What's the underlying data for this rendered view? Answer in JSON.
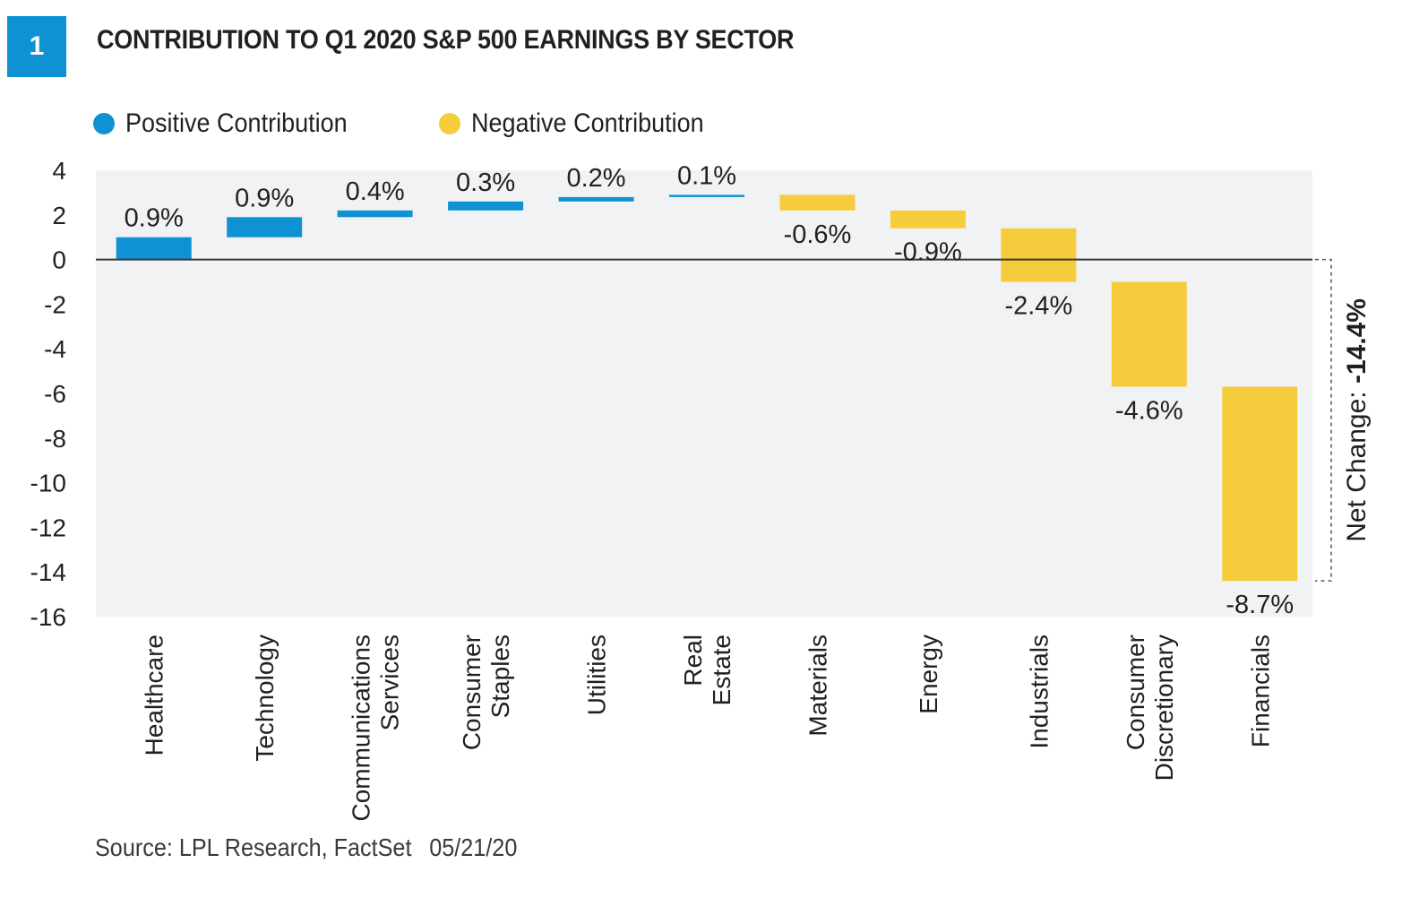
{
  "figure": {
    "number": "1",
    "title": "CONTRIBUTION TO Q1 2020 S&P 500 EARNINGS BY SECTOR",
    "source": "Source: LPL Research, FactSet",
    "date": "05/21/20"
  },
  "colors": {
    "positive": "#0f92d4",
    "negative": "#f5cd3c",
    "plot_background": "#f1f2f4",
    "badge": "#0f92d4"
  },
  "chart_data": {
    "type": "bar",
    "subtype": "waterfall",
    "title": "CONTRIBUTION TO Q1 2020 S&P 500 EARNINGS BY SECTOR",
    "legend": [
      {
        "name": "Positive Contribution",
        "color": "#0f92d4"
      },
      {
        "name": "Negative Contribution",
        "color": "#f5cd3c"
      }
    ],
    "legend_position": "top-left",
    "categories": [
      [
        "Healthcare"
      ],
      [
        "Technology"
      ],
      [
        "Communications",
        "Services"
      ],
      [
        "Consumer",
        "Staples"
      ],
      [
        "Utilities"
      ],
      [
        "Real",
        "Estate"
      ],
      [
        "Materials"
      ],
      [
        "Energy"
      ],
      [
        "Industrials"
      ],
      [
        "Consumer",
        "Discretionary"
      ],
      [
        "Financials"
      ]
    ],
    "values": [
      0.9,
      0.9,
      0.4,
      0.3,
      0.2,
      0.1,
      -0.6,
      -0.9,
      -2.4,
      -4.6,
      -8.7
    ],
    "bar_ranges": [
      [
        0,
        1.0
      ],
      [
        1.0,
        1.9
      ],
      [
        1.9,
        2.2
      ],
      [
        2.2,
        2.6
      ],
      [
        2.6,
        2.8
      ],
      [
        2.8,
        2.9
      ],
      [
        2.9,
        2.2
      ],
      [
        2.2,
        1.4
      ],
      [
        1.4,
        -1.0
      ],
      [
        -1.0,
        -5.7
      ],
      [
        -5.7,
        -14.4
      ]
    ],
    "data_labels": [
      "0.9%",
      "0.9%",
      "0.4%",
      "0.3%",
      "0.2%",
      "0.1%",
      "-0.6%",
      "-0.9%",
      "-2.4%",
      "-4.6%",
      "-8.7%"
    ],
    "yticks": [
      4,
      2,
      0,
      -2,
      -4,
      -6,
      -8,
      -10,
      -12,
      -14,
      -16
    ],
    "ylim": [
      -16,
      4
    ],
    "xlabel": "",
    "ylabel": "",
    "grid": false,
    "annotation": {
      "label": "Net Change: ",
      "value": "-14.4%",
      "from": 0,
      "to": -14.4
    }
  }
}
